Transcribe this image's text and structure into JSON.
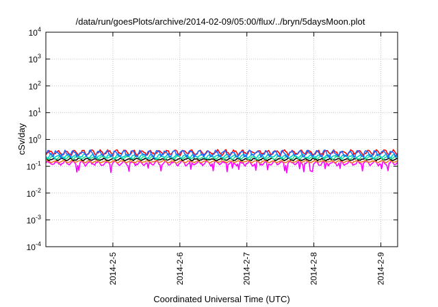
{
  "chart_data": {
    "type": "line",
    "title": "/data/run/goesPlots/archive/2014-02-09/05:00/flux/../bryn/5daysMoon.plot",
    "xlabel": "Coordinated Universal Time (UTC)",
    "ylabel": "cSv/day",
    "yscale": "log",
    "ylim": [
      0.0001,
      10000
    ],
    "xlim": [
      "2014-02-04 00:00",
      "2014-02-09 06:00"
    ],
    "grid": true,
    "yticks": [
      {
        "base": "10",
        "exp": "-4"
      },
      {
        "base": "10",
        "exp": "-3"
      },
      {
        "base": "10",
        "exp": "-2"
      },
      {
        "base": "10",
        "exp": "-1"
      },
      {
        "base": "10",
        "exp": "0"
      },
      {
        "base": "10",
        "exp": "1"
      },
      {
        "base": "10",
        "exp": "2"
      },
      {
        "base": "10",
        "exp": "3"
      },
      {
        "base": "10",
        "exp": "4"
      }
    ],
    "xticks": [
      {
        "label": "2014-2-5",
        "date": "2014-02-05"
      },
      {
        "label": "2014-2-6",
        "date": "2014-02-06"
      },
      {
        "label": "2014-2-7",
        "date": "2014-02-07"
      },
      {
        "label": "2014-2-8",
        "date": "2014-02-08"
      },
      {
        "label": "2014-2-9",
        "date": "2014-02-09"
      }
    ],
    "series": [
      {
        "color": "#ff00ff",
        "level": 0.13,
        "spread": 0.3,
        "dips": true
      },
      {
        "color": "#e87722",
        "level": 0.15,
        "spread": 0.15,
        "dips": false
      },
      {
        "color": "#000000",
        "level": 0.18,
        "spread": 0.15,
        "dips": false
      },
      {
        "color": "#22dd88",
        "level": 0.21,
        "spread": 0.2,
        "dips": false
      },
      {
        "color": "#00cccc",
        "level": 0.24,
        "spread": 0.25,
        "dips": false
      },
      {
        "color": "#ff0000",
        "level": 0.33,
        "spread": 0.35,
        "dips": false
      },
      {
        "color": "#2266ff",
        "level": 0.3,
        "spread": 0.45,
        "dips": false
      }
    ]
  }
}
